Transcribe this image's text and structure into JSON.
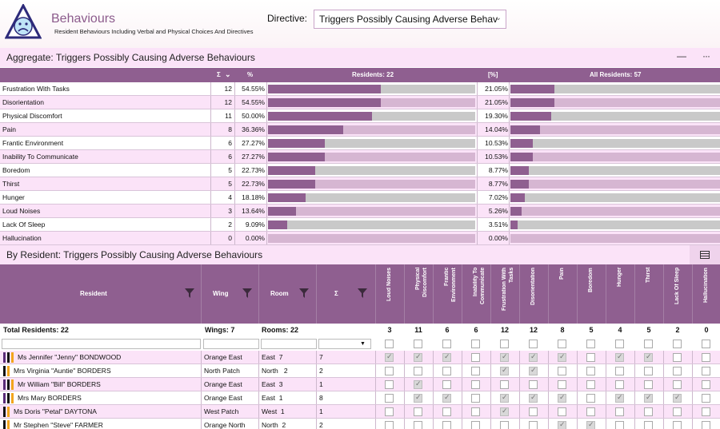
{
  "app": {
    "title": "Behaviours",
    "subtitle": "Resident Behaviours Including Verbal and Physical Choices And Directives",
    "directive_label": "Directive:",
    "directive_value": "Triggers Possibly Causing Adverse Behav"
  },
  "aggregate": {
    "title": "Aggregate: Triggers Possibly Causing Adverse Behaviours",
    "minimize_glyph": "—",
    "more_glyph": "···",
    "headers": {
      "sigma": "Σ",
      "percent": "%",
      "residents": "Residents: 22",
      "bracket_percent": "[%]",
      "all_residents": "All Residents: 57"
    },
    "rows": [
      {
        "name": "Frustration With Tasks",
        "count": "12",
        "pct": "54.55%",
        "pct_value": 54.55,
        "all_pct": "21.05%",
        "all_value": 21.05
      },
      {
        "name": "Disorientation",
        "count": "12",
        "pct": "54.55%",
        "pct_value": 54.55,
        "all_pct": "21.05%",
        "all_value": 21.05
      },
      {
        "name": "Physical Discomfort",
        "count": "11",
        "pct": "50.00%",
        "pct_value": 50.0,
        "all_pct": "19.30%",
        "all_value": 19.3
      },
      {
        "name": "Pain",
        "count": "8",
        "pct": "36.36%",
        "pct_value": 36.36,
        "all_pct": "14.04%",
        "all_value": 14.04
      },
      {
        "name": "Frantic Environment",
        "count": "6",
        "pct": "27.27%",
        "pct_value": 27.27,
        "all_pct": "10.53%",
        "all_value": 10.53
      },
      {
        "name": "Inability To Communicate",
        "count": "6",
        "pct": "27.27%",
        "pct_value": 27.27,
        "all_pct": "10.53%",
        "all_value": 10.53
      },
      {
        "name": "Boredom",
        "count": "5",
        "pct": "22.73%",
        "pct_value": 22.73,
        "all_pct": "8.77%",
        "all_value": 8.77
      },
      {
        "name": "Thirst",
        "count": "5",
        "pct": "22.73%",
        "pct_value": 22.73,
        "all_pct": "8.77%",
        "all_value": 8.77
      },
      {
        "name": "Hunger",
        "count": "4",
        "pct": "18.18%",
        "pct_value": 18.18,
        "all_pct": "7.02%",
        "all_value": 7.02
      },
      {
        "name": "Loud Noises",
        "count": "3",
        "pct": "13.64%",
        "pct_value": 13.64,
        "all_pct": "5.26%",
        "all_value": 5.26
      },
      {
        "name": "Lack Of Sleep",
        "count": "2",
        "pct": "9.09%",
        "pct_value": 9.09,
        "all_pct": "3.51%",
        "all_value": 3.51
      },
      {
        "name": "Hallucination",
        "count": "0",
        "pct": "0.00%",
        "pct_value": 0,
        "all_pct": "0.00%",
        "all_value": 0
      }
    ]
  },
  "by_resident": {
    "title": "By Resident: Triggers Possibly Causing Adverse Behaviours",
    "columns": {
      "resident": "Resident",
      "wing": "Wing",
      "room": "Room",
      "sigma": "Σ"
    },
    "trigger_columns": [
      "Loud Noises",
      "Physical Discomfort",
      "Frantic Environment",
      "Inability To Communicate",
      "Frustration With Tasks",
      "Disorientation",
      "Pain",
      "Boredom",
      "Hunger",
      "Thirst",
      "Lack Of Sleep",
      "Hallucination"
    ],
    "totals": {
      "residents": "Total Residents: 22",
      "wings": "Wings: 7",
      "rooms": "Rooms: 22",
      "trigger_counts": [
        "3",
        "11",
        "6",
        "6",
        "12",
        "12",
        "8",
        "5",
        "4",
        "5",
        "2",
        "0"
      ]
    },
    "colors": {
      "purple": "#5a2a78",
      "orange": "#f2a51d",
      "black": "#111111",
      "header": "#8f5f90",
      "accent_row": "#fbe3f8"
    },
    "rows": [
      {
        "name": "Ms Jennifer \"Jenny\" BONDWOOD",
        "wing": "Orange East",
        "room": "East  7",
        "count": "7",
        "swatches": [
          "purple",
          "black",
          "orange"
        ],
        "checks": [
          1,
          1,
          1,
          0,
          1,
          1,
          1,
          0,
          1,
          1,
          0,
          0
        ]
      },
      {
        "name": "Mrs Virginia \"Auntie\" BORDERS",
        "wing": "North Patch",
        "room": "North   2",
        "count": "2",
        "swatches": [
          "black",
          "orange"
        ],
        "checks": [
          0,
          0,
          0,
          0,
          1,
          1,
          0,
          0,
          0,
          0,
          0,
          0
        ]
      },
      {
        "name": "Mr William \"Bill\" BORDERS",
        "wing": "Orange East",
        "room": "East  3",
        "count": "1",
        "swatches": [
          "purple",
          "black",
          "orange"
        ],
        "checks": [
          0,
          1,
          0,
          0,
          0,
          0,
          0,
          0,
          0,
          0,
          0,
          0
        ]
      },
      {
        "name": "Mrs Mary BORDERS",
        "wing": "Orange East",
        "room": "East  1",
        "count": "8",
        "swatches": [
          "purple",
          "black",
          "orange"
        ],
        "checks": [
          0,
          1,
          1,
          0,
          1,
          1,
          1,
          0,
          1,
          1,
          1,
          0
        ]
      },
      {
        "name": "Ms Doris \"Petal\" DAYTONA",
        "wing": "West Patch",
        "room": "West  1",
        "count": "1",
        "swatches": [
          "black",
          "orange"
        ],
        "checks": [
          0,
          0,
          0,
          0,
          1,
          0,
          0,
          0,
          0,
          0,
          0,
          0
        ]
      },
      {
        "name": "Mr Stephen \"Steve\" FARMER",
        "wing": "Orange North",
        "room": "North  2",
        "count": "2",
        "swatches": [
          "black",
          "orange"
        ],
        "checks": [
          0,
          0,
          0,
          0,
          0,
          0,
          1,
          1,
          0,
          0,
          0,
          0
        ]
      }
    ]
  }
}
